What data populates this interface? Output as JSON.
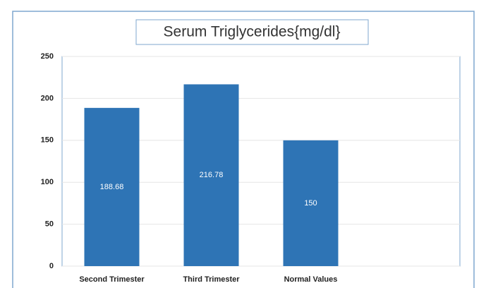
{
  "chart_data": {
    "type": "bar",
    "title": "Serum Triglycerides{mg/dl}",
    "categories": [
      "Second Trimester",
      "Third Trimester",
      "Normal Values"
    ],
    "values": [
      188.68,
      216.78,
      150
    ],
    "color": "#2e74b5",
    "ylim": [
      0,
      250
    ],
    "yticks": [
      0,
      50,
      100,
      150,
      200,
      250
    ],
    "grid": true
  }
}
